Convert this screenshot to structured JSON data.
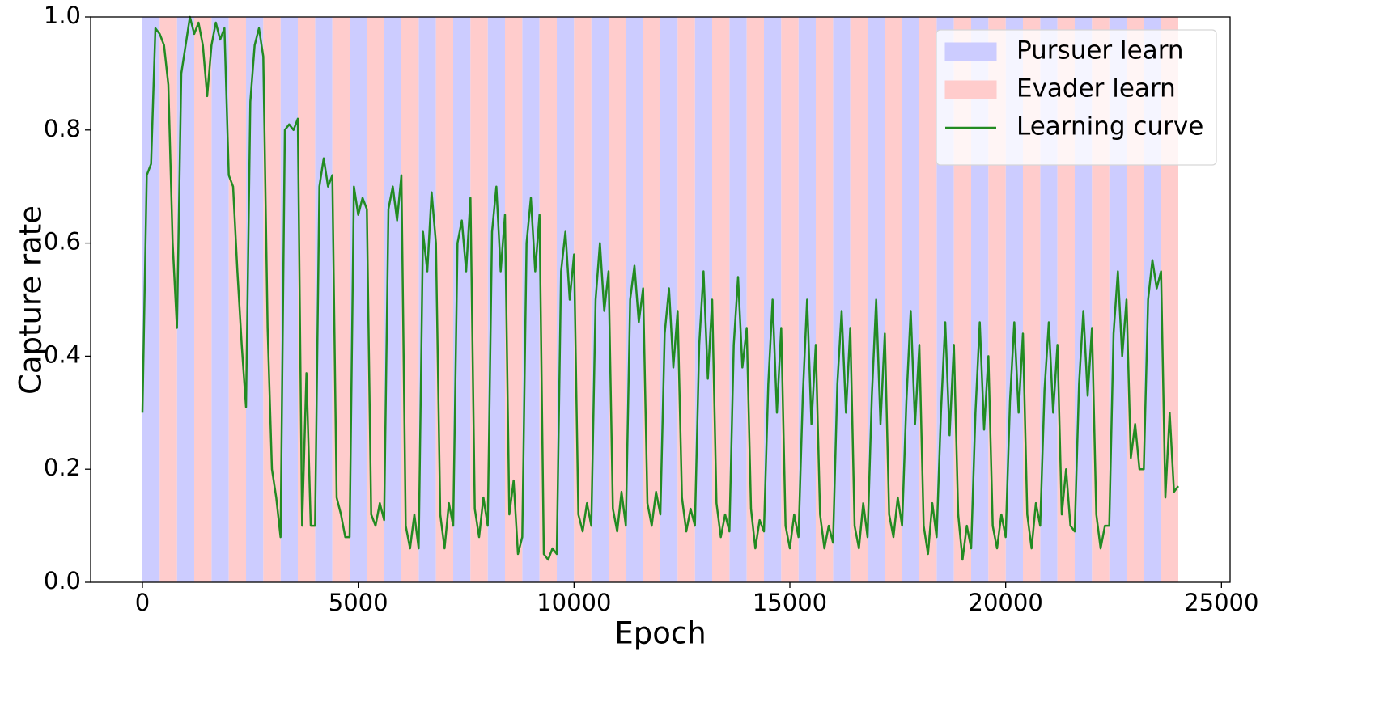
{
  "chart_data": {
    "type": "line",
    "xlabel": "Epoch",
    "ylabel": "Capture rate",
    "xlim": [
      -1200,
      25200
    ],
    "ylim": [
      0,
      1
    ],
    "xticks": [
      0,
      5000,
      10000,
      15000,
      20000,
      25000
    ],
    "yticks": [
      {
        "value": 0,
        "label": "0.0"
      },
      0.2,
      0.4,
      0.6,
      0.8,
      {
        "value": 1,
        "label": "1.0"
      }
    ],
    "grid": false,
    "legend": "upper right",
    "spans": [
      {
        "name": "Pursuer learn",
        "color": "#ccccff",
        "from": [
          0,
          800,
          1600,
          2400,
          3200,
          4000,
          4800,
          5600,
          6400,
          7200,
          8000,
          8800,
          9600,
          10400,
          11200,
          12000,
          12800,
          13600,
          14400,
          15200,
          16000,
          16800,
          17600,
          18400,
          19200,
          20000,
          20800,
          21600,
          22400,
          23200
        ],
        "to": [
          400,
          1200,
          2000,
          2800,
          3600,
          4400,
          5200,
          6000,
          6800,
          7600,
          8400,
          9200,
          10000,
          10800,
          11600,
          12400,
          13200,
          14000,
          14800,
          15600,
          16400,
          17200,
          18000,
          18800,
          19600,
          20400,
          21200,
          22000,
          22800,
          23600
        ]
      },
      {
        "name": "Evader learn",
        "color": "#ffcccc",
        "from": [
          400,
          1200,
          2000,
          2800,
          3600,
          4400,
          5200,
          6000,
          6800,
          7600,
          8400,
          9200,
          10000,
          10800,
          11600,
          12400,
          13200,
          14000,
          14800,
          15600,
          16400,
          17200,
          18000,
          18800,
          19600,
          20400,
          21200,
          22000,
          22800,
          23600
        ],
        "to": [
          800,
          1600,
          2400,
          3200,
          4000,
          4800,
          5600,
          6400,
          7200,
          8000,
          8800,
          9600,
          10400,
          11200,
          12000,
          12800,
          13600,
          14400,
          15200,
          16000,
          16800,
          17600,
          18400,
          19200,
          20000,
          20800,
          21600,
          22400,
          23200,
          24000
        ]
      }
    ],
    "x": [
      0,
      100,
      200,
      300,
      400,
      500,
      600,
      700,
      800,
      900,
      1000,
      1100,
      1200,
      1300,
      1400,
      1500,
      1600,
      1700,
      1800,
      1900,
      2000,
      2100,
      2200,
      2300,
      2400,
      2500,
      2600,
      2700,
      2800,
      2900,
      3000,
      3100,
      3200,
      3300,
      3400,
      3500,
      3600,
      3700,
      3800,
      3900,
      4000,
      4100,
      4200,
      4300,
      4400,
      4500,
      4600,
      4700,
      4800,
      4900,
      5000,
      5100,
      5200,
      5300,
      5400,
      5500,
      5600,
      5700,
      5800,
      5900,
      6000,
      6100,
      6200,
      6300,
      6400,
      6500,
      6600,
      6700,
      6800,
      6900,
      7000,
      7100,
      7200,
      7300,
      7400,
      7500,
      7600,
      7700,
      7800,
      7900,
      8000,
      8100,
      8200,
      8300,
      8400,
      8500,
      8600,
      8700,
      8800,
      8900,
      9000,
      9100,
      9200,
      9300,
      9400,
      9500,
      9600,
      9700,
      9800,
      9900,
      10000,
      10100,
      10200,
      10300,
      10400,
      10500,
      10600,
      10700,
      10800,
      10900,
      11000,
      11100,
      11200,
      11300,
      11400,
      11500,
      11600,
      11700,
      11800,
      11900,
      12000,
      12100,
      12200,
      12300,
      12400,
      12500,
      12600,
      12700,
      12800,
      12900,
      13000,
      13100,
      13200,
      13300,
      13400,
      13500,
      13600,
      13700,
      13800,
      13900,
      14000,
      14100,
      14200,
      14300,
      14400,
      14500,
      14600,
      14700,
      14800,
      14900,
      15000,
      15100,
      15200,
      15300,
      15400,
      15500,
      15600,
      15700,
      15800,
      15900,
      16000,
      16100,
      16200,
      16300,
      16400,
      16500,
      16600,
      16700,
      16800,
      16900,
      17000,
      17100,
      17200,
      17300,
      17400,
      17500,
      17600,
      17700,
      17800,
      17900,
      18000,
      18100,
      18200,
      18300,
      18400,
      18500,
      18600,
      18700,
      18800,
      18900,
      19000,
      19100,
      19200,
      19300,
      19400,
      19500,
      19600,
      19700,
      19800,
      19900,
      20000,
      20100,
      20200,
      20300,
      20400,
      20500,
      20600,
      20700,
      20800,
      20900,
      21000,
      21100,
      21200,
      21300,
      21400,
      21500,
      21600,
      21700,
      21800,
      21900,
      22000,
      22100,
      22200,
      22300,
      22400,
      22500,
      22600,
      22700,
      22800,
      22900,
      23000,
      23100,
      23200,
      23300,
      23400,
      23500,
      23600,
      23700,
      23800,
      23900,
      24000
    ],
    "series": [
      {
        "name": "Learning curve",
        "color": "#228b22",
        "values": [
          0.3,
          0.72,
          0.74,
          0.98,
          0.97,
          0.95,
          0.88,
          0.6,
          0.45,
          0.9,
          0.95,
          1.0,
          0.97,
          0.99,
          0.95,
          0.86,
          0.95,
          0.99,
          0.96,
          0.98,
          0.72,
          0.7,
          0.55,
          0.42,
          0.31,
          0.85,
          0.95,
          0.98,
          0.93,
          0.45,
          0.2,
          0.15,
          0.08,
          0.8,
          0.81,
          0.8,
          0.82,
          0.1,
          0.37,
          0.1,
          0.1,
          0.7,
          0.75,
          0.7,
          0.72,
          0.15,
          0.12,
          0.08,
          0.08,
          0.7,
          0.65,
          0.68,
          0.66,
          0.12,
          0.1,
          0.14,
          0.11,
          0.66,
          0.7,
          0.64,
          0.72,
          0.1,
          0.06,
          0.12,
          0.06,
          0.62,
          0.55,
          0.69,
          0.6,
          0.12,
          0.06,
          0.14,
          0.1,
          0.6,
          0.64,
          0.55,
          0.68,
          0.13,
          0.08,
          0.15,
          0.1,
          0.62,
          0.7,
          0.55,
          0.65,
          0.12,
          0.18,
          0.05,
          0.08,
          0.6,
          0.68,
          0.55,
          0.65,
          0.05,
          0.04,
          0.06,
          0.05,
          0.55,
          0.62,
          0.5,
          0.58,
          0.12,
          0.09,
          0.14,
          0.1,
          0.5,
          0.6,
          0.48,
          0.55,
          0.13,
          0.09,
          0.16,
          0.1,
          0.5,
          0.56,
          0.46,
          0.52,
          0.14,
          0.1,
          0.16,
          0.12,
          0.44,
          0.52,
          0.38,
          0.48,
          0.15,
          0.09,
          0.13,
          0.1,
          0.42,
          0.55,
          0.36,
          0.5,
          0.14,
          0.08,
          0.12,
          0.09,
          0.42,
          0.54,
          0.38,
          0.45,
          0.13,
          0.06,
          0.11,
          0.09,
          0.35,
          0.5,
          0.3,
          0.45,
          0.1,
          0.06,
          0.12,
          0.08,
          0.33,
          0.5,
          0.28,
          0.42,
          0.12,
          0.06,
          0.1,
          0.07,
          0.35,
          0.48,
          0.3,
          0.45,
          0.1,
          0.06,
          0.14,
          0.08,
          0.33,
          0.5,
          0.28,
          0.44,
          0.12,
          0.08,
          0.15,
          0.1,
          0.32,
          0.48,
          0.28,
          0.42,
          0.1,
          0.05,
          0.14,
          0.08,
          0.3,
          0.46,
          0.26,
          0.42,
          0.12,
          0.04,
          0.1,
          0.06,
          0.3,
          0.46,
          0.27,
          0.4,
          0.1,
          0.06,
          0.12,
          0.08,
          0.32,
          0.46,
          0.3,
          0.44,
          0.12,
          0.06,
          0.14,
          0.1,
          0.34,
          0.46,
          0.3,
          0.42,
          0.12,
          0.2,
          0.1,
          0.09,
          0.35,
          0.48,
          0.33,
          0.45,
          0.12,
          0.06,
          0.1,
          0.1,
          0.44,
          0.55,
          0.4,
          0.5,
          0.22,
          0.28,
          0.2,
          0.2,
          0.5,
          0.57,
          0.52,
          0.55,
          0.15,
          0.3,
          0.16,
          0.17
        ]
      }
    ]
  }
}
